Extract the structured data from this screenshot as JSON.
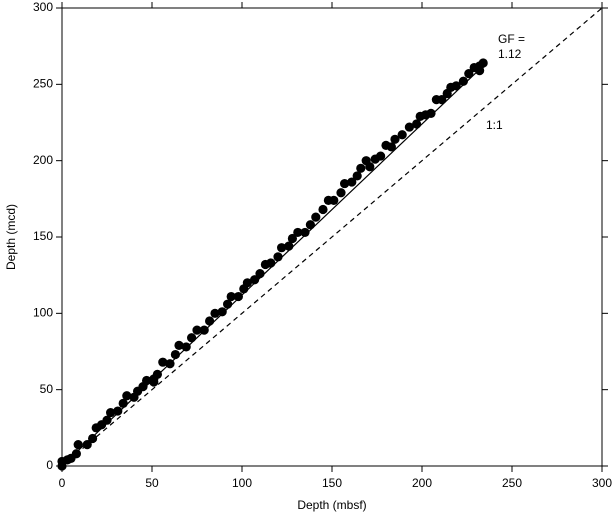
{
  "chart_data": {
    "type": "scatter",
    "xlabel": "Depth (mbsf)",
    "ylabel": "Depth (mcd)",
    "xlim": [
      0,
      300
    ],
    "ylim": [
      0,
      300
    ],
    "xticks": [
      0,
      50,
      100,
      150,
      200,
      250,
      300
    ],
    "yticks": [
      0,
      50,
      100,
      150,
      200,
      250,
      300
    ],
    "series": [
      {
        "color": "#000000",
        "x": [
          0,
          0,
          3,
          5,
          8,
          9,
          14,
          17,
          19,
          22,
          25,
          27,
          31,
          34,
          36,
          40,
          42,
          45,
          47,
          51,
          51,
          53,
          56,
          60,
          63,
          65,
          69,
          72,
          75,
          79,
          82,
          85,
          89,
          92,
          94,
          98,
          101,
          103,
          107,
          110,
          113,
          116,
          120,
          122,
          126,
          128,
          131,
          135,
          138,
          141,
          145,
          148,
          151,
          155,
          157,
          161,
          164,
          166,
          169,
          171,
          174,
          177,
          180,
          183,
          185,
          189,
          193,
          197,
          199,
          202,
          205,
          208,
          211,
          214,
          216,
          219,
          223,
          226,
          229,
          232,
          232,
          234
        ],
        "values": [
          0,
          3,
          4,
          5,
          8,
          14,
          14,
          18,
          25,
          27,
          30,
          35,
          36,
          41,
          46,
          45,
          49,
          52,
          56,
          55,
          57,
          60,
          68,
          67,
          73,
          79,
          78,
          84,
          89,
          89,
          95,
          100,
          101,
          106,
          111,
          111,
          116,
          120,
          122,
          126,
          132,
          133,
          137,
          143,
          144,
          149,
          153,
          153,
          158,
          163,
          168,
          174,
          174,
          179,
          185,
          186,
          190,
          195,
          200,
          196,
          201,
          203,
          210,
          209,
          214,
          217,
          222,
          224,
          229,
          230,
          231,
          240,
          240,
          244,
          248,
          249,
          252,
          257,
          261,
          262,
          259,
          264
        ]
      }
    ],
    "fit": {
      "label": "GF =",
      "slope": 1.12
    },
    "reference": {
      "label": "1:1",
      "slope": 1
    }
  }
}
